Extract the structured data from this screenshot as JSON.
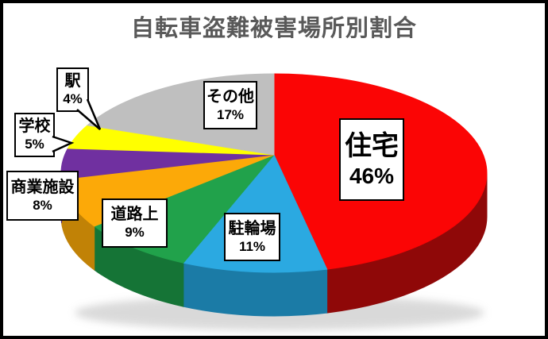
{
  "window": {
    "background_color": "#FFFFFF",
    "frame_color": "#000000"
  },
  "header": {
    "title": "自転車盗難被害場所別割合",
    "title_color": "#595959"
  },
  "chart_data": {
    "type": "pie",
    "title": "自転車盗難被害場所別割合",
    "style": "3d-pie",
    "start_angle_deg": 0,
    "direction": "clockwise",
    "legend": "none",
    "labels_style": "boxed-callouts",
    "slices": [
      {
        "label": "住宅",
        "value": 46,
        "percent_label": "46%",
        "color": "#FB0505",
        "side_color": "#8F0808"
      },
      {
        "label": "駐輪場",
        "value": 11,
        "percent_label": "11%",
        "color": "#2BA9E1",
        "side_color": "#1B7BA6"
      },
      {
        "label": "道路上",
        "value": 9,
        "percent_label": "9%",
        "color": "#21A24B",
        "side_color": "#157436"
      },
      {
        "label": "商業施設",
        "value": 8,
        "percent_label": "8%",
        "color": "#FCA908",
        "side_color": "#C18206"
      },
      {
        "label": "学校",
        "value": 5,
        "percent_label": "5%",
        "color": "#7030A0",
        "side_color": "#522376"
      },
      {
        "label": "駅",
        "value": 4,
        "percent_label": "4%",
        "color": "#FFFF00",
        "side_color": "#BDBD00"
      },
      {
        "label": "その他",
        "value": 17,
        "percent_label": "17%",
        "color": "#BFBFBF",
        "side_color": "#8C8C8C"
      }
    ]
  }
}
